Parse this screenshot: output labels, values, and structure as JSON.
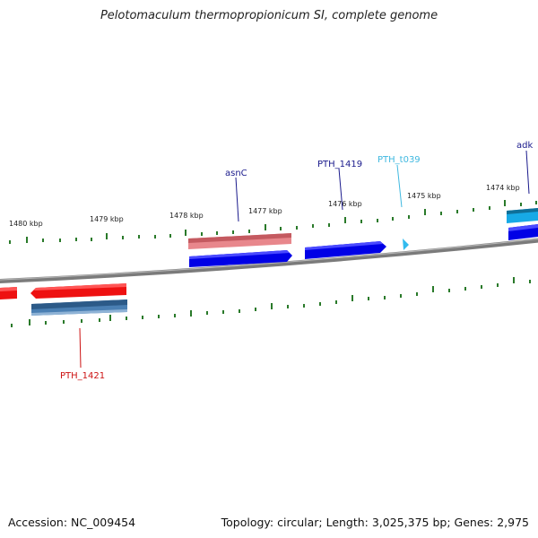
{
  "title": "Pelotomaculum thermopropionicum SI, complete genome",
  "accession_label": "Accession: NC_009454",
  "topology_label": "Topology: circular; Length: 3,025,375 bp; Genes: 2,975",
  "tick_labels": [
    "1480 kbp",
    "1479 kbp",
    "1478 kbp",
    "1477 kbp",
    "1476 kbp",
    "1475 kbp",
    "1474 kbp"
  ],
  "gene_labels": [
    {
      "text": "asnC",
      "color": "#1a1a8c"
    },
    {
      "text": "PTH_1419",
      "color": "#1a1a8c"
    },
    {
      "text": "PTH_t039",
      "color": "#3fb8e0"
    },
    {
      "text": "adk",
      "color": "#1a1a8c"
    },
    {
      "text": "PTH_1421",
      "color": "#cc1111"
    }
  ],
  "colors": {
    "forward_cds": "#0000ee",
    "reverse_cds": "#ee1111",
    "forward_gene": "#e06a70",
    "reverse_gene": "#4a7fb3",
    "trna": "#33bbee",
    "ticks": "#1f7a1f",
    "backbone": "#8a8a8a"
  }
}
